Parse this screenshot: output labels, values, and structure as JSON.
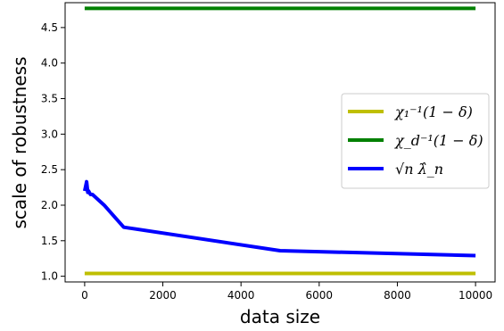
{
  "chart_data": {
    "type": "line",
    "xlabel": "data size",
    "ylabel": "scale of robustness",
    "xlim": [
      -500,
      10500
    ],
    "ylim": [
      0.92,
      4.85
    ],
    "xticks": [
      0,
      2000,
      4000,
      6000,
      8000,
      10000
    ],
    "xtick_labels": [
      "0",
      "2000",
      "4000",
      "6000",
      "8000",
      "10000"
    ],
    "yticks": [
      1.0,
      1.5,
      2.0,
      2.5,
      3.0,
      3.5,
      4.0,
      4.5
    ],
    "ytick_labels": [
      "1.0",
      "1.5",
      "2.0",
      "2.5",
      "3.0",
      "3.5",
      "4.0",
      "4.5"
    ],
    "legend_position": "center-right",
    "series": [
      {
        "name": "χ₁⁻¹(1 − δ)",
        "color": "#bfbf00",
        "x": [
          0,
          10000
        ],
        "y": [
          1.04,
          1.04
        ]
      },
      {
        "name": "χ_d⁻¹(1 − δ)",
        "color": "#008000",
        "x": [
          0,
          10000
        ],
        "y": [
          4.77,
          4.77
        ]
      },
      {
        "name": "√n λ̂_n",
        "color": "#0000ff",
        "x": [
          0,
          20,
          50,
          80,
          100,
          150,
          200,
          500,
          1000,
          5000,
          10000
        ],
        "y": [
          2.2,
          2.25,
          2.33,
          2.18,
          2.2,
          2.15,
          2.15,
          2.0,
          1.69,
          1.36,
          1.29
        ]
      }
    ]
  }
}
